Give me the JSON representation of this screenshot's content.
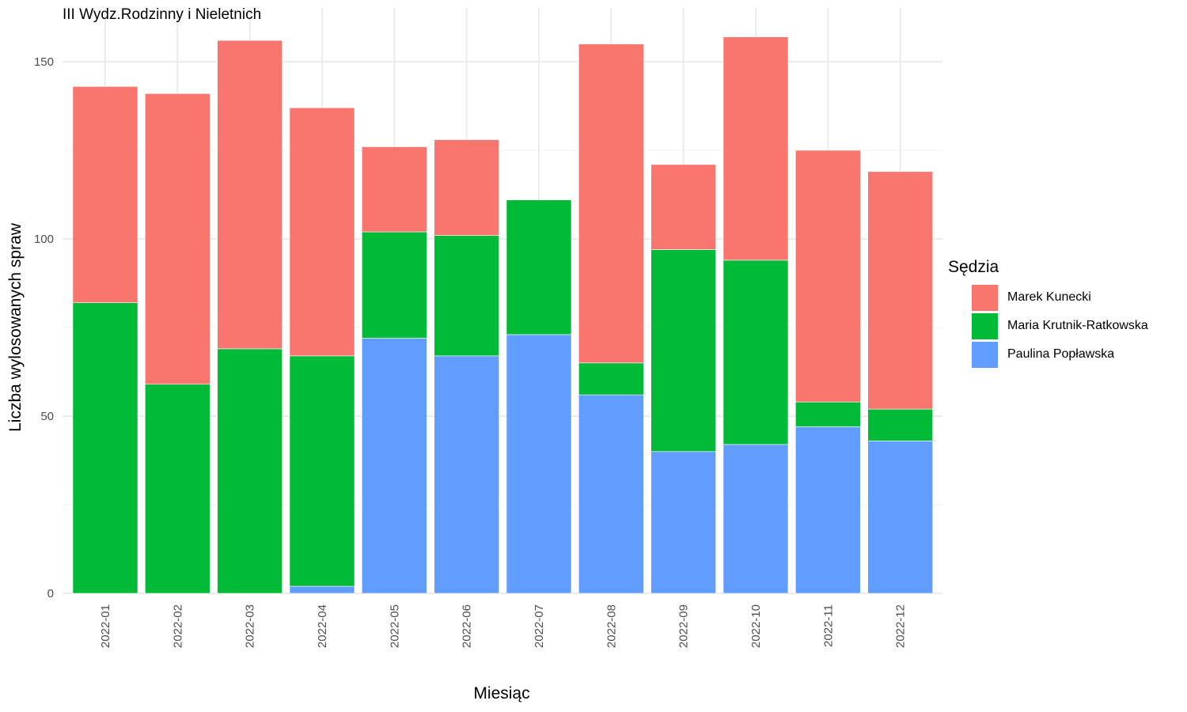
{
  "chart_data": {
    "type": "bar",
    "stacked": true,
    "title": "III Wydz.Rodzinny i Nieletnich",
    "xlabel": "Miesiąc",
    "ylabel": "Liczba wylosowanych spraw",
    "legend_title": "Sędzia",
    "legend_position": "right",
    "grid": true,
    "ylim": [
      0,
      160
    ],
    "yticks": [
      0,
      50,
      100,
      150
    ],
    "categories": [
      "2022-01",
      "2022-02",
      "2022-03",
      "2022-04",
      "2022-05",
      "2022-06",
      "2022-07",
      "2022-08",
      "2022-09",
      "2022-10",
      "2022-11",
      "2022-12"
    ],
    "series": [
      {
        "name": "Paulina Popławska",
        "color": "#619CFF",
        "values": [
          0,
          0,
          0,
          2,
          72,
          67,
          73,
          56,
          40,
          42,
          47,
          43
        ]
      },
      {
        "name": "Maria Krutnik-Ratkowska",
        "color": "#00BA38",
        "values": [
          82,
          59,
          69,
          65,
          30,
          34,
          38,
          9,
          57,
          52,
          7,
          9
        ]
      },
      {
        "name": "Marek Kunecki",
        "color": "#F8766D",
        "values": [
          61,
          82,
          87,
          70,
          24,
          27,
          0,
          90,
          24,
          63,
          71,
          67
        ]
      }
    ],
    "legend_order": [
      "Marek Kunecki",
      "Maria Krutnik-Ratkowska",
      "Paulina Popławska"
    ]
  }
}
